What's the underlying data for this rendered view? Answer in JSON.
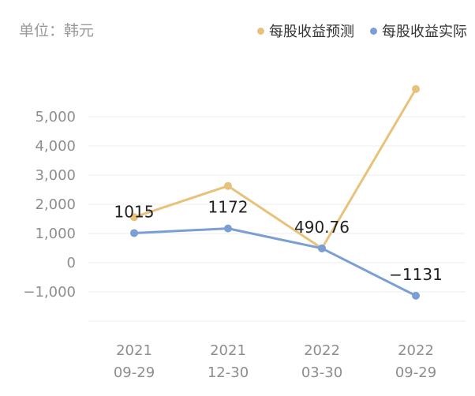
{
  "unit_label": "单位：韩元",
  "chart_data": {
    "type": "line",
    "categories": [
      "2021\n09-29",
      "2021\n12-30",
      "2022\n03-30",
      "2022\n09-29"
    ],
    "series": [
      {
        "name": "每股收益预测",
        "color": "#e8c27a",
        "values": [
          1560,
          2630,
          490,
          5950
        ]
      },
      {
        "name": "每股收益实际",
        "color": "#7b9fd4",
        "values": [
          1015,
          1172,
          490.76,
          -1131
        ]
      }
    ],
    "data_labels": [
      "1015",
      "1172",
      "490.76",
      "-1131"
    ],
    "y_ticks": [
      "5,000",
      "4,000",
      "3,000",
      "2,000",
      "1,000",
      "0",
      "-1,000"
    ],
    "ylim": [
      -2000,
      5000
    ],
    "grid": true,
    "legend_position": "top-right"
  }
}
